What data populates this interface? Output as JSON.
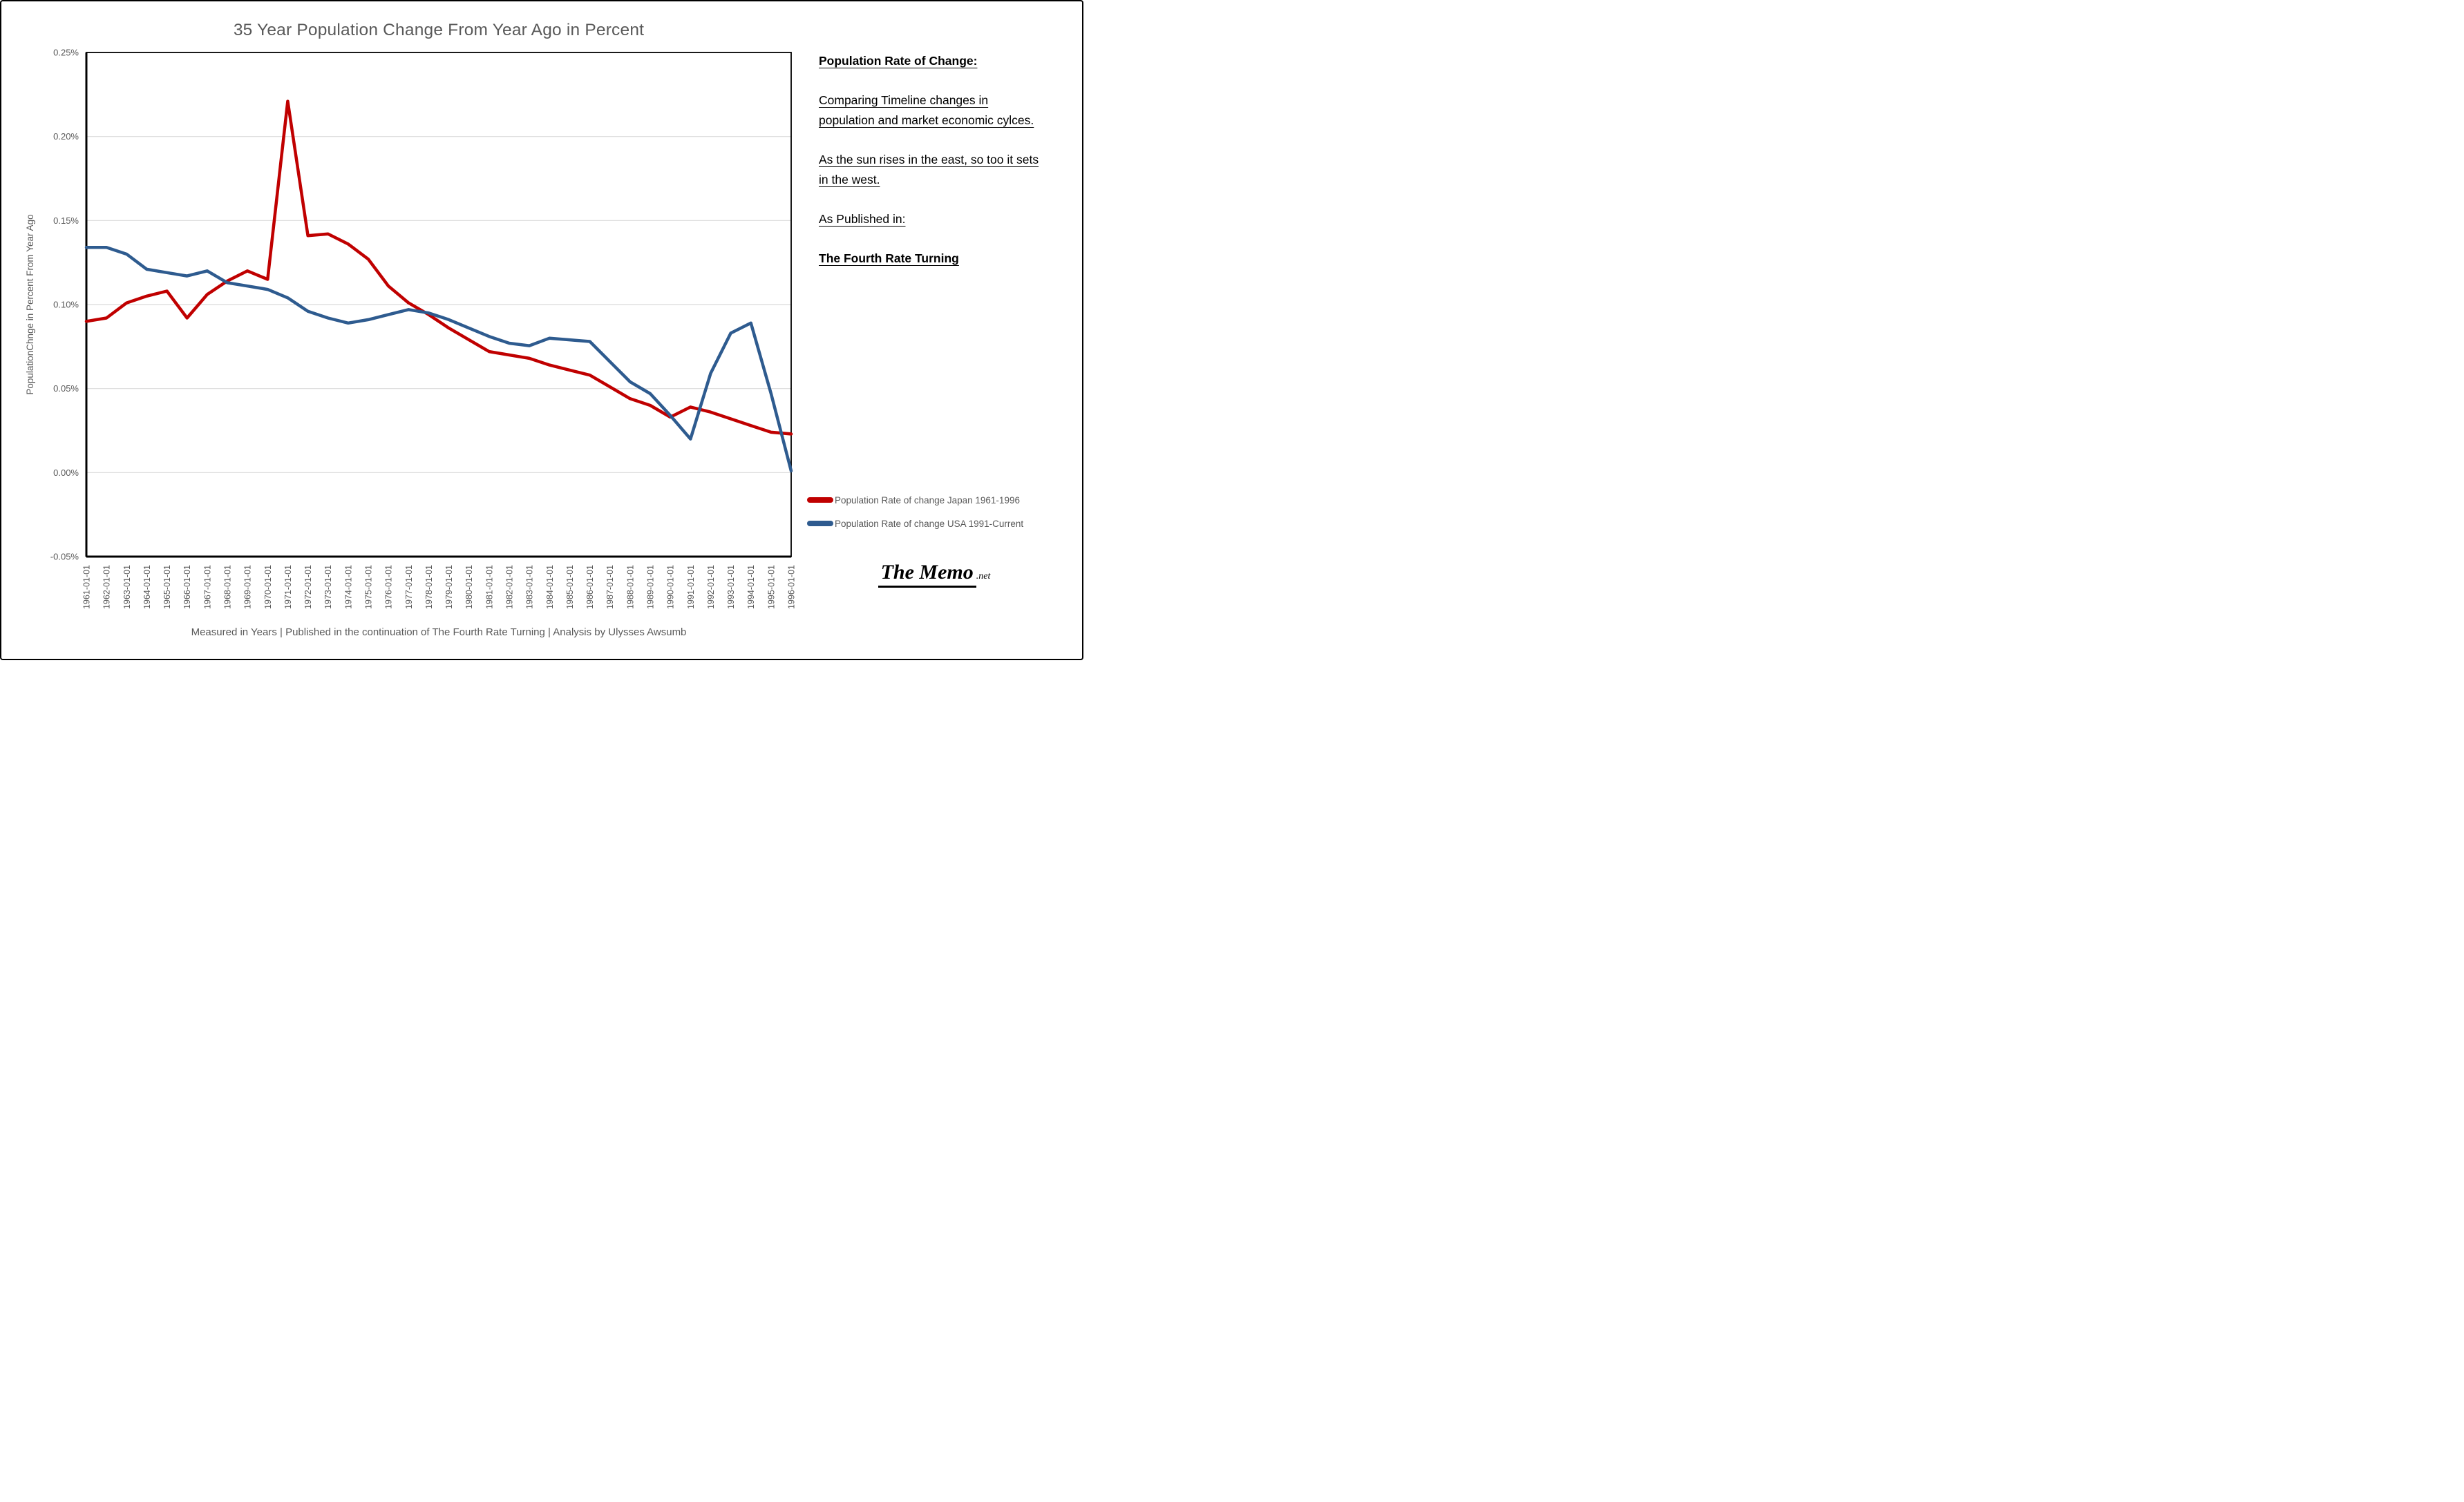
{
  "chart": {
    "title": "35 Year Population Change From Year Ago in Percent",
    "footer": "Measured in Years  | Published in the continuation of The Fourth Rate Turning | Analysis by Ulysses Awsumb"
  },
  "chart_data": {
    "type": "line",
    "title": "35 Year Population Change From Year Ago in Percent",
    "xlabel": "",
    "ylabel": "PopulationChnge in Percent From Year Ago",
    "ylim": [
      -0.05,
      0.25
    ],
    "y_ticks": [
      "0.25%",
      "0.20%",
      "0.15%",
      "0.10%",
      "0.05%",
      "0.00%",
      "-0.05%"
    ],
    "y_tick_values": [
      0.25,
      0.2,
      0.15,
      0.1,
      0.05,
      0.0,
      -0.05
    ],
    "grid": "horizontal",
    "legend_position": "right-bottom",
    "categories": [
      "1961-01-01",
      "1962-01-01",
      "1963-01-01",
      "1964-01-01",
      "1965-01-01",
      "1966-01-01",
      "1967-01-01",
      "1968-01-01",
      "1969-01-01",
      "1970-01-01",
      "1971-01-01",
      "1972-01-01",
      "1973-01-01",
      "1974-01-01",
      "1975-01-01",
      "1976-01-01",
      "1977-01-01",
      "1978-01-01",
      "1979-01-01",
      "1980-01-01",
      "1981-01-01",
      "1982-01-01",
      "1983-01-01",
      "1984-01-01",
      "1985-01-01",
      "1986-01-01",
      "1987-01-01",
      "1988-01-01",
      "1989-01-01",
      "1990-01-01",
      "1991-01-01",
      "1992-01-01",
      "1993-01-01",
      "1994-01-01",
      "1995-01-01",
      "1996-01-01"
    ],
    "series": [
      {
        "name": "Population Rate of change Japan 1961-1996",
        "color": "#C00000",
        "values": [
          0.09,
          0.092,
          0.101,
          0.105,
          0.108,
          0.092,
          0.106,
          0.114,
          0.12,
          0.115,
          0.221,
          0.141,
          0.142,
          0.136,
          0.127,
          0.111,
          0.101,
          0.094,
          0.086,
          0.079,
          0.072,
          0.07,
          0.068,
          0.064,
          0.061,
          0.058,
          0.051,
          0.044,
          0.04,
          0.033,
          0.039,
          0.036,
          0.032,
          0.028,
          0.024,
          0.023
        ]
      },
      {
        "name": "Population Rate of change USA 1991-Current",
        "color": "#2E5B8F",
        "values": [
          0.134,
          0.134,
          0.13,
          0.121,
          0.119,
          0.117,
          0.12,
          0.113,
          0.111,
          0.109,
          0.104,
          0.096,
          0.092,
          0.089,
          0.091,
          0.094,
          0.097,
          0.095,
          0.091,
          0.086,
          0.081,
          0.077,
          0.0755,
          0.08,
          0.079,
          0.078,
          0.066,
          0.054,
          0.047,
          0.034,
          0.02,
          0.059,
          0.083,
          0.089,
          0.047,
          0.001
        ]
      }
    ]
  },
  "side_panel": {
    "heading": "Population Rate of Change:",
    "para_comparing": "Comparing Timeline changes in population and market economic cylces.",
    "para_sun": "As the sun rises in the east, so too it sets in the west.",
    "para_published": "As Published in:",
    "book_title": "The Fourth Rate Turning"
  },
  "legend": {
    "items": [
      {
        "label": "Population Rate of change Japan 1961-1996",
        "color": "#C00000"
      },
      {
        "label": "Population Rate of change USA 1991-Current",
        "color": "#2E5B8F"
      }
    ]
  },
  "logo": {
    "main": "The Memo",
    "suffix": ".net"
  }
}
